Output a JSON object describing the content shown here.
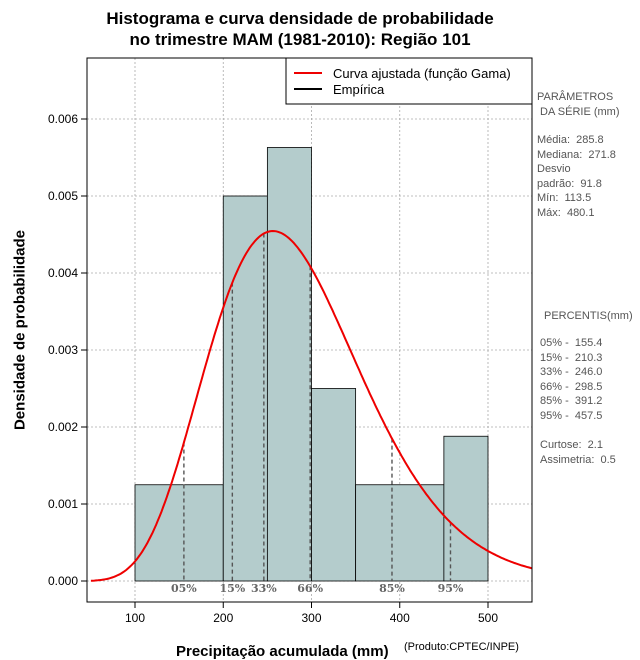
{
  "chart_data": {
    "type": "bar",
    "title": [
      "Histograma e curva densidade de probabilidade",
      "no trimestre MAM (1981-2010): Região 101"
    ],
    "xlabel": "Precipitação acumulada (mm)",
    "ylabel": "Densidade de probabilidade",
    "credit": "(Produto:CPTEC/INPE)",
    "xlim": [
      50,
      550
    ],
    "ylim": [
      0,
      0.0068
    ],
    "xticks": [
      100,
      200,
      300,
      400,
      500
    ],
    "yticks": [
      0.0,
      0.001,
      0.002,
      0.003,
      0.004,
      0.005,
      0.006
    ],
    "ytick_labels": [
      "0.000",
      "0.001",
      "0.002",
      "0.003",
      "0.004",
      "0.005",
      "0.006"
    ],
    "grid": true,
    "bins": [
      {
        "from": 100,
        "to": 200,
        "density": 0.00125
      },
      {
        "from": 200,
        "to": 250,
        "density": 0.005
      },
      {
        "from": 250,
        "to": 300,
        "density": 0.00563
      },
      {
        "from": 300,
        "to": 350,
        "density": 0.0025
      },
      {
        "from": 350,
        "to": 450,
        "density": 0.00125
      },
      {
        "from": 450,
        "to": 500,
        "density": 0.00188
      }
    ],
    "gamma_fit": {
      "mean": 285.8,
      "sd": 91.8
    },
    "percentile_markers": [
      {
        "label": "05%",
        "value": 155.4
      },
      {
        "label": "15%",
        "value": 210.3
      },
      {
        "label": "33%",
        "value": 246.0
      },
      {
        "label": "66%",
        "value": 298.5
      },
      {
        "label": "85%",
        "value": 391.2
      },
      {
        "label": "95%",
        "value": 457.5
      }
    ],
    "legend": [
      {
        "label": "Curva ajustada (função Gama)",
        "color": "#ee0000"
      },
      {
        "label": "Empírica",
        "color": "#000000"
      }
    ],
    "bar_color": "#b4cccc",
    "curve_color": "#ee0000"
  },
  "side_panel": {
    "params_title": "PARÂMETROS\n DA SÉRIE (mm)",
    "params_body": "Média:  285.8\nMediana:  271.8\nDesvio\npadrão:  91.8\nMín:  113.5\nMáx:  480.1",
    "pct_title": "PERCENTIS(mm)",
    "pct_body": "05% -  155.4\n15% -  210.3\n33% -  246.0\n66% -  298.5\n85% -  391.2\n95% -  457.5",
    "stats_body": "Curtose:  2.1\nAssimetria:  0.5"
  }
}
